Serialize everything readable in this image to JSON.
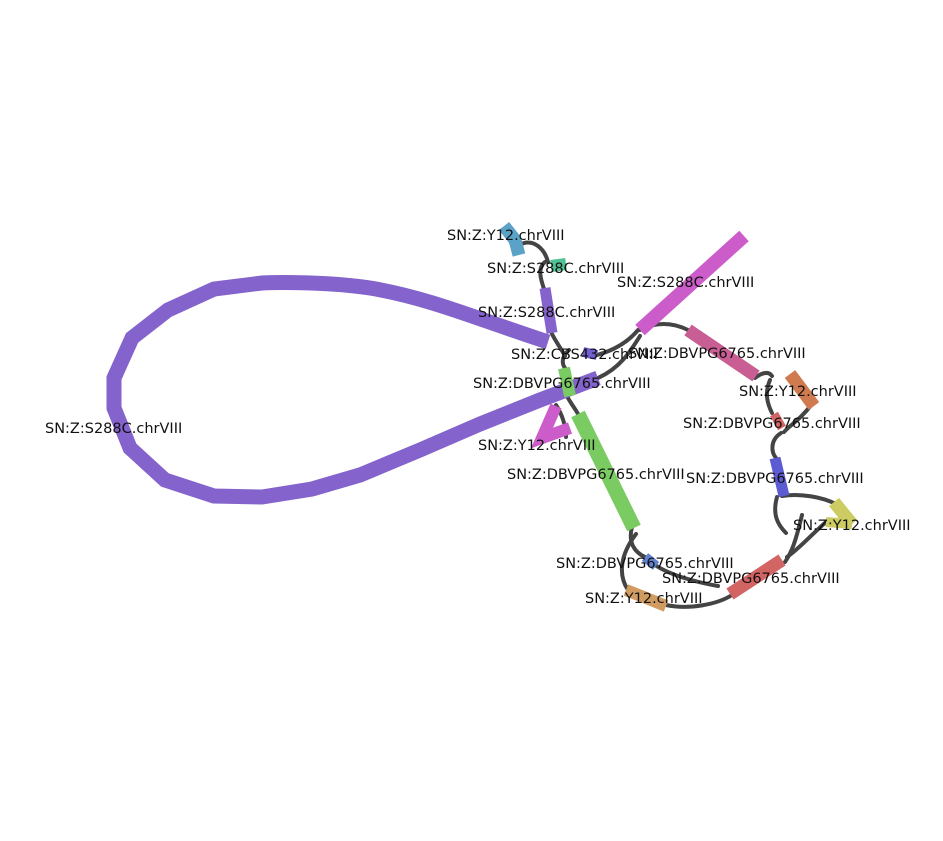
{
  "graph": {
    "colors": {
      "edge": "#444444",
      "purple": "#8464cc",
      "lightblue": "#5aa2c8",
      "teal": "#4fc192",
      "magenta": "#cc5cca",
      "rose": "#c85e93",
      "orange": "#d07a50",
      "red": "#d26464",
      "indigo": "#5c5cd2",
      "yellow": "#cccc62",
      "green": "#7acc62",
      "steel": "#6080d0",
      "tan": "#d09c62"
    },
    "labels": [
      "SN:Z:Y12.chrVIII",
      "SN:Z:S288C.chrVIII",
      "SN:Z:S288C.chrVIII",
      "SN:Z:S288C.chrVIII",
      "SN:Z:CBS432.chrVIII",
      "SN:Z:DBVPG6765.chrVIII",
      "SN:Z:DBVPG6765.chrVIII",
      "SN:Z:S288C.chrVIII",
      "SN:Z:Y12.chrVIII",
      "SN:Z:Y12.chrVIII",
      "SN:Z:DBVPG6765.chrVIII",
      "SN:Z:DBVPG6765.chrVIII",
      "SN:Z:DBVPG6765.chrVIII",
      "SN:Z:Y12.chrVIII",
      "SN:Z:DBVPG6765.chrVIII",
      "SN:Z:DBVPG6765.chrVIII",
      "SN:Z:Y12.chrVIII"
    ]
  }
}
